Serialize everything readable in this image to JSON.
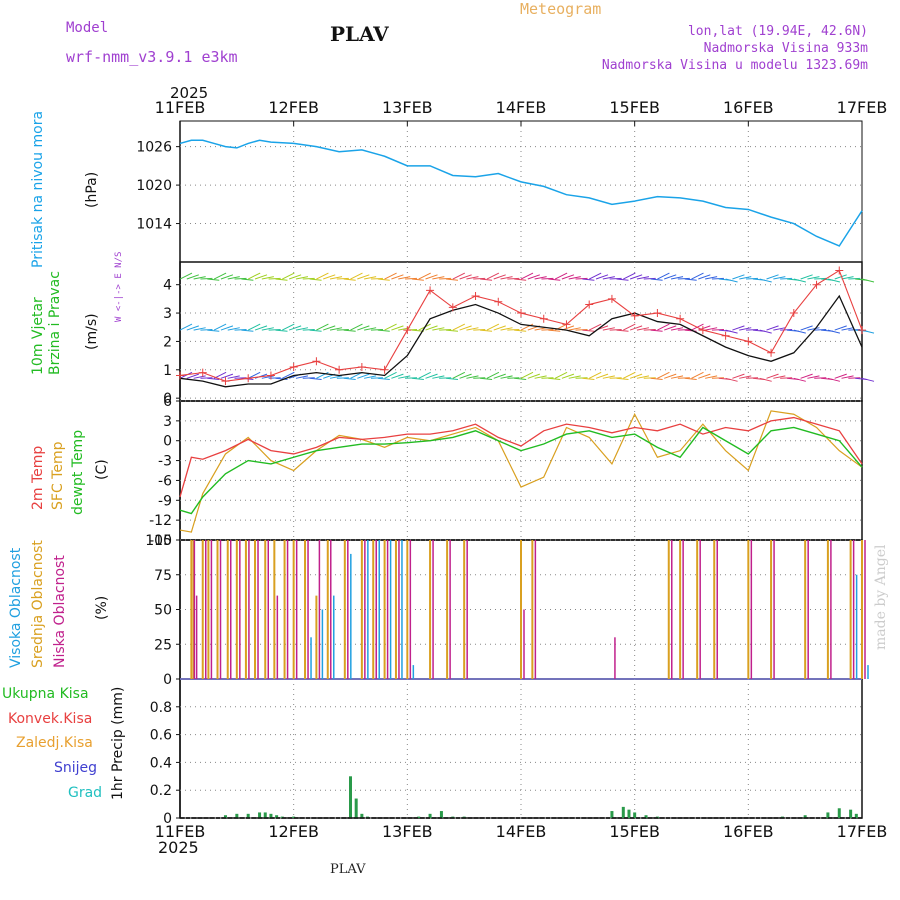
{
  "header": {
    "title": "PLAV",
    "model_label": "Model",
    "model_name": "wrf-nmm_v3.9.1 e3km",
    "meteogram_label": "Meteogram",
    "lonlat": "lon,lat (19.94E, 42.6N)",
    "elevation": "Nadmorska Visina 933m",
    "model_elevation": "Nadmorska Visina u modelu 1323.69m",
    "year": "2025",
    "footer_station": "PLAV",
    "credit": "made by Angel"
  },
  "colors": {
    "pressure": "#1aa3e8",
    "temp2m": "#e84040",
    "sfc_temp": "#d9a020",
    "dewpt": "#22bb22",
    "purple": "#a040d0",
    "orange": "#e8a030",
    "high_cloud": "#20a0e0",
    "mid_cloud": "#d9a020",
    "low_cloud": "#c0208c",
    "precip": "#2a9a4a",
    "grid": "#888888"
  },
  "time_axis": {
    "labels": [
      "11FEB",
      "12FEB",
      "13FEB",
      "14FEB",
      "15FEB",
      "16FEB",
      "17FEB"
    ]
  },
  "chart_data": [
    {
      "type": "line",
      "title": "Pritisak na nivou mora",
      "ylabel": "(hPa)",
      "yticks": [
        "1026",
        "1020",
        "1014"
      ],
      "ylim": [
        1008,
        1030
      ],
      "x_days": [
        0,
        0.1,
        0.2,
        0.3,
        0.4,
        0.5,
        0.6,
        0.7,
        0.8,
        1.0,
        1.2,
        1.4,
        1.6,
        1.8,
        2.0,
        2.2,
        2.4,
        2.6,
        2.8,
        3.0,
        3.2,
        3.4,
        3.6,
        3.8,
        4.0,
        4.2,
        4.4,
        4.6,
        4.8,
        5.0,
        5.2,
        5.4,
        5.6,
        5.8,
        6.0
      ],
      "series": [
        {
          "name": "Pressure",
          "values": [
            1026.5,
            1027,
            1027,
            1026.5,
            1026,
            1025.8,
            1026.5,
            1027,
            1026.7,
            1026.5,
            1026,
            1025.2,
            1025.5,
            1024.5,
            1023,
            1023,
            1021.5,
            1021.3,
            1021.8,
            1020.5,
            1019.8,
            1018.5,
            1018,
            1017,
            1017.5,
            1018.2,
            1018,
            1017.5,
            1016.5,
            1016.2,
            1015,
            1014,
            1012,
            1010.5,
            1016
          ]
        }
      ]
    },
    {
      "type": "line",
      "title": "10m Vjetar Brzina i Pravac",
      "ylabel": "(m/s)",
      "yticks": [
        "0",
        "1",
        "2",
        "3",
        "4"
      ],
      "ylim": [
        -0.1,
        4.8
      ],
      "compass": "W <-|-> E   N/S",
      "x_days": [
        0,
        0.2,
        0.4,
        0.6,
        0.8,
        1.0,
        1.2,
        1.4,
        1.6,
        1.8,
        2.0,
        2.2,
        2.4,
        2.6,
        2.8,
        3.0,
        3.2,
        3.4,
        3.6,
        3.8,
        4.0,
        4.2,
        4.4,
        4.6,
        4.8,
        5.0,
        5.2,
        5.4,
        5.6,
        5.8,
        6.0
      ],
      "series": [
        {
          "name": "Speed",
          "values": [
            0.7,
            0.6,
            0.4,
            0.5,
            0.5,
            0.8,
            0.9,
            0.8,
            0.9,
            0.8,
            1.5,
            2.8,
            3.1,
            3.3,
            3.0,
            2.6,
            2.5,
            2.4,
            2.2,
            2.8,
            3.0,
            2.7,
            2.6,
            2.2,
            1.8,
            1.5,
            1.3,
            1.6,
            2.5,
            3.6,
            1.8
          ]
        },
        {
          "name": "Gust",
          "values": [
            0.8,
            0.9,
            0.6,
            0.7,
            0.8,
            1.1,
            1.3,
            1.0,
            1.1,
            1.0,
            2.4,
            3.8,
            3.2,
            3.6,
            3.4,
            3.0,
            2.8,
            2.6,
            3.3,
            3.5,
            2.9,
            3.0,
            2.8,
            2.4,
            2.2,
            2.0,
            1.6,
            3.0,
            4.0,
            4.5,
            2.4
          ]
        }
      ]
    },
    {
      "type": "line",
      "title": "2m Temp / SFC Temp / dewpt Temp",
      "ylabel": "(C)",
      "yticks": [
        "6",
        "3",
        "0",
        "-3",
        "-6",
        "-9",
        "-12",
        "-15"
      ],
      "ylim": [
        -15,
        6
      ],
      "x_days": [
        0,
        0.1,
        0.2,
        0.4,
        0.6,
        0.8,
        1.0,
        1.2,
        1.4,
        1.6,
        1.8,
        2.0,
        2.2,
        2.4,
        2.6,
        2.8,
        3.0,
        3.2,
        3.4,
        3.6,
        3.8,
        4.0,
        4.2,
        4.4,
        4.6,
        4.8,
        5.0,
        5.2,
        5.4,
        5.6,
        5.8,
        6.0
      ],
      "series": [
        {
          "name": "2m Temp",
          "values": [
            -8.5,
            -2.5,
            -2.8,
            -1.5,
            0.2,
            -1.5,
            -2.0,
            -1.0,
            0.5,
            0.2,
            0.5,
            1.0,
            1.0,
            1.5,
            2.5,
            0.5,
            -0.8,
            1.5,
            2.5,
            2.0,
            1.2,
            2.0,
            1.5,
            2.5,
            1.0,
            2.0,
            1.5,
            3.0,
            3.5,
            2.5,
            1.5,
            -3.5
          ]
        },
        {
          "name": "SFC Temp",
          "values": [
            -13.5,
            -13.8,
            -8.0,
            -2.0,
            0.5,
            -3.0,
            -4.5,
            -1.5,
            0.8,
            0.2,
            -1.0,
            0.5,
            0.0,
            1.0,
            2.0,
            0.0,
            -7.0,
            -5.5,
            2.0,
            0.5,
            -3.5,
            4.0,
            -2.5,
            -1.5,
            2.5,
            -1.5,
            -4.5,
            4.5,
            4.0,
            2.0,
            -1.5,
            -4.0
          ]
        },
        {
          "name": "dewpt Temp",
          "values": [
            -10.5,
            -11.0,
            -8.5,
            -5.0,
            -3.0,
            -3.5,
            -2.5,
            -1.5,
            -1.0,
            -0.5,
            -0.5,
            -0.3,
            0.0,
            0.5,
            1.5,
            0.0,
            -1.5,
            -0.5,
            1.0,
            1.5,
            0.5,
            1.0,
            -1.0,
            -2.5,
            2.0,
            0.0,
            -2.0,
            1.5,
            2.0,
            1.0,
            0.0,
            -4.0
          ]
        }
      ]
    },
    {
      "type": "bar",
      "title": "Visoka Oblacnost / Srednja Oblacnost / Niska Oblacnost",
      "ylabel": "(%)",
      "yticks": [
        "100",
        "75",
        "50",
        "25",
        "0"
      ],
      "ylim": [
        0,
        100
      ],
      "x_days": [
        0.1,
        0.12,
        0.2,
        0.25,
        0.33,
        0.42,
        0.5,
        0.58,
        0.66,
        0.75,
        0.83,
        0.92,
        1.0,
        1.1,
        1.2,
        1.3,
        1.45,
        1.6,
        1.7,
        1.8,
        1.9,
        2.0,
        2.2,
        2.35,
        2.5,
        3.0,
        3.1,
        3.8,
        4.3,
        4.4,
        4.55,
        4.7,
        5.0,
        5.2,
        5.5,
        5.7,
        5.9,
        6.0
      ],
      "series": [
        {
          "name": "Srednja Oblacnost",
          "values": [
            100,
            100,
            100,
            100,
            100,
            100,
            100,
            100,
            100,
            100,
            100,
            100,
            100,
            100,
            60,
            100,
            100,
            100,
            100,
            100,
            100,
            100,
            100,
            100,
            100,
            100,
            100,
            0,
            100,
            100,
            100,
            100,
            100,
            100,
            100,
            100,
            100,
            100
          ]
        },
        {
          "name": "Niska Oblacnost",
          "values": [
            100,
            60,
            100,
            100,
            100,
            100,
            100,
            100,
            100,
            100,
            60,
            100,
            100,
            100,
            100,
            100,
            100,
            100,
            100,
            100,
            100,
            100,
            100,
            100,
            100,
            50,
            100,
            30,
            100,
            100,
            100,
            100,
            100,
            100,
            100,
            100,
            100,
            100
          ]
        },
        {
          "name": "Visoka Oblacnost",
          "values": [
            0,
            0,
            0,
            0,
            0,
            0,
            0,
            0,
            0,
            0,
            0,
            0,
            0,
            30,
            50,
            60,
            90,
            100,
            100,
            100,
            100,
            10,
            0,
            0,
            0,
            0,
            0,
            0,
            0,
            0,
            0,
            0,
            0,
            0,
            0,
            0,
            75,
            10
          ]
        }
      ]
    },
    {
      "type": "bar",
      "title": "1hr Precip",
      "ylabel": "1hr Precip (mm)",
      "yticks": [
        "0.8",
        "0.6",
        "0.4",
        "0.2",
        "0"
      ],
      "ylim": [
        0,
        1.0
      ],
      "legend": [
        "Ukupna Kisa",
        "Konvek.Kisa",
        "Zaledj.Kisa",
        "Snijeg",
        "Grad"
      ],
      "x_days": [
        0.4,
        0.5,
        0.6,
        0.7,
        0.75,
        0.8,
        0.85,
        0.9,
        1.0,
        1.5,
        1.55,
        1.6,
        1.65,
        2.1,
        2.2,
        2.3,
        2.4,
        2.5,
        3.8,
        3.9,
        3.95,
        4.0,
        4.1,
        4.2,
        5.3,
        5.5,
        5.7,
        5.8,
        5.9,
        5.95
      ],
      "series": [
        {
          "name": "Ukupna Kisa",
          "values": [
            0.02,
            0.03,
            0.03,
            0.04,
            0.04,
            0.03,
            0.02,
            0.01,
            0.01,
            0.3,
            0.14,
            0.03,
            0.01,
            0.01,
            0.03,
            0.05,
            0.01,
            0.01,
            0.05,
            0.08,
            0.06,
            0.04,
            0.02,
            0.01,
            0.01,
            0.02,
            0.04,
            0.07,
            0.06,
            0.03
          ]
        }
      ]
    }
  ]
}
